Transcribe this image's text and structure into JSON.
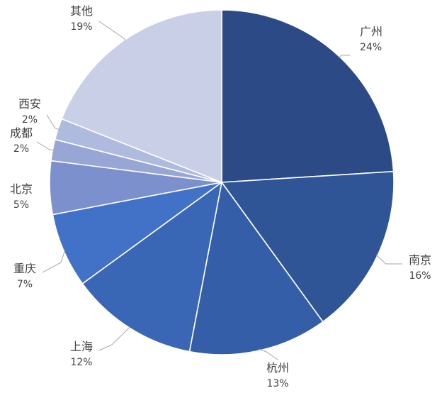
{
  "chart_data": {
    "type": "pie",
    "title": "",
    "slices": [
      {
        "name": "广州",
        "value": 24,
        "label": "24%",
        "color": "#2b4a86"
      },
      {
        "name": "南京",
        "value": 16,
        "label": "16%",
        "color": "#305597"
      },
      {
        "name": "杭州",
        "value": 13,
        "label": "13%",
        "color": "#345ea7"
      },
      {
        "name": "上海",
        "value": 12,
        "label": "12%",
        "color": "#3a66b6"
      },
      {
        "name": "重庆",
        "value": 7,
        "label": "7%",
        "color": "#4272c8"
      },
      {
        "name": "北京",
        "value": 5,
        "label": "5%",
        "color": "#7b90cc"
      },
      {
        "name": "成都",
        "value": 2,
        "label": "2%",
        "color": "#98a6d5"
      },
      {
        "name": "西安",
        "value": 2,
        "label": "2%",
        "color": "#afbadf"
      },
      {
        "name": "其他",
        "value": 19,
        "label": "19%",
        "color": "#c8cfe7"
      }
    ],
    "legend": "none"
  }
}
